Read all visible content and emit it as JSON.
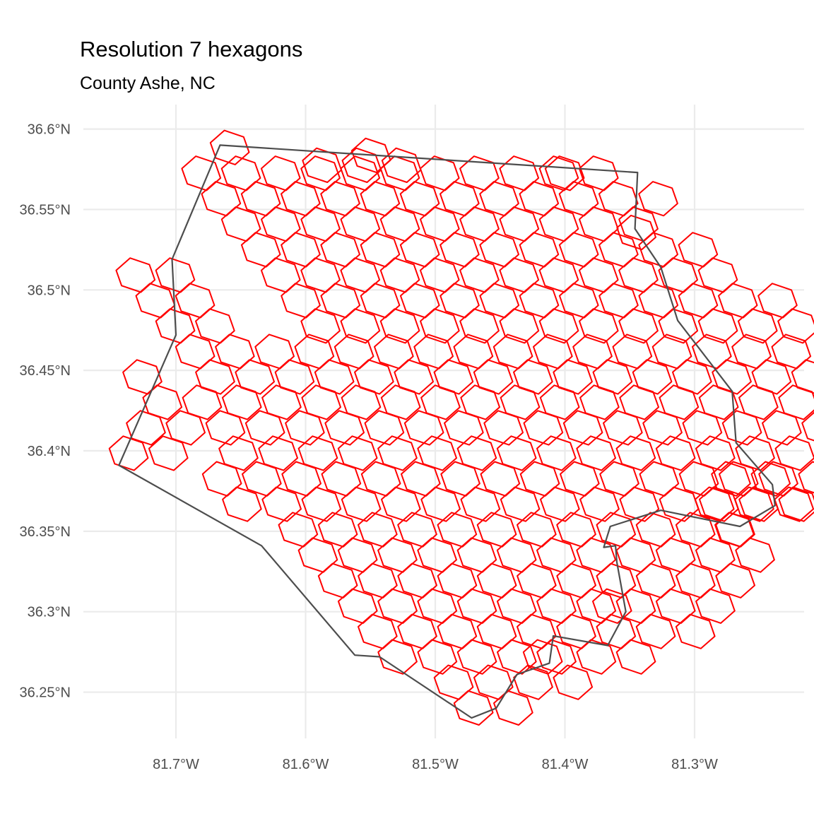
{
  "title": "Resolution 7 hexagons",
  "subtitle": "County Ashe, NC",
  "colors": {
    "background": "#ffffff",
    "grid": "#ebebeb",
    "county_outline": "#4d4d4d",
    "hexagon_outline": "#ff0000",
    "tick_text": "#4d4d4d"
  },
  "axes": {
    "x_ticks": [
      {
        "value": -81.7,
        "label": "81.7°W"
      },
      {
        "value": -81.6,
        "label": "81.6°W"
      },
      {
        "value": -81.5,
        "label": "81.5°W"
      },
      {
        "value": -81.4,
        "label": "81.4°W"
      },
      {
        "value": -81.3,
        "label": "81.3°W"
      }
    ],
    "y_ticks": [
      {
        "value": 36.6,
        "label": "36.6°N"
      },
      {
        "value": 36.55,
        "label": "36.55°N"
      },
      {
        "value": 36.5,
        "label": "36.5°N"
      },
      {
        "value": 36.45,
        "label": "36.45°N"
      },
      {
        "value": 36.4,
        "label": "36.4°N"
      },
      {
        "value": 36.35,
        "label": "36.35°N"
      },
      {
        "value": 36.3,
        "label": "36.3°N"
      },
      {
        "value": 36.25,
        "label": "36.25°N"
      }
    ]
  },
  "county_boundary": [
    [
      -81.666,
      36.59
    ],
    [
      -81.344,
      36.573
    ],
    [
      -81.346,
      36.538
    ],
    [
      -81.326,
      36.514
    ],
    [
      -81.313,
      36.481
    ],
    [
      -81.271,
      36.437
    ],
    [
      -81.268,
      36.405
    ],
    [
      -81.24,
      36.379
    ],
    [
      -81.238,
      36.366
    ],
    [
      -81.265,
      36.353
    ],
    [
      -81.326,
      36.363
    ],
    [
      -81.365,
      36.353
    ],
    [
      -81.37,
      36.34
    ],
    [
      -81.361,
      36.341
    ],
    [
      -81.36,
      36.331
    ],
    [
      -81.353,
      36.3
    ],
    [
      -81.367,
      36.279
    ],
    [
      -81.409,
      36.285
    ],
    [
      -81.412,
      36.268
    ],
    [
      -81.437,
      36.261
    ],
    [
      -81.453,
      36.24
    ],
    [
      -81.472,
      36.234
    ],
    [
      -81.543,
      36.272
    ],
    [
      -81.562,
      36.273
    ],
    [
      -81.634,
      36.341
    ],
    [
      -81.744,
      36.391
    ],
    [
      -81.7,
      36.472
    ],
    [
      -81.703,
      36.519
    ],
    [
      -81.666,
      36.59
    ]
  ],
  "hexagons": {
    "resolution": 7,
    "rows": [
      {
        "lat": 36.5885,
        "lon_start": -81.6585,
        "count": 1
      },
      {
        "lat": 36.5836,
        "lon_start": -81.5495,
        "count": 1
      },
      {
        "lat": 36.5775,
        "lon_start": -81.5874,
        "count": 3
      },
      {
        "lat": 36.5725,
        "lon_start": -81.4002,
        "count": 1
      },
      {
        "lat": 36.5725,
        "lon_start": -81.6805,
        "count": 11
      },
      {
        "lat": 36.5567,
        "lon_start": -81.6652,
        "count": 12
      },
      {
        "lat": 36.5409,
        "lon_start": -81.6498,
        "count": 11
      },
      {
        "lat": 36.5357,
        "lon_start": -81.3449,
        "count": 1
      },
      {
        "lat": 36.525,
        "lon_start": -81.6345,
        "count": 12
      },
      {
        "lat": 36.5092,
        "lon_start": -81.6192,
        "count": 12
      },
      {
        "lat": 36.5092,
        "lon_start": -81.7312,
        "count": 2
      },
      {
        "lat": 36.4934,
        "lon_start": -81.6038,
        "count": 13
      },
      {
        "lat": 36.4934,
        "lon_start": -81.7159,
        "count": 2
      },
      {
        "lat": 36.4776,
        "lon_start": -81.5885,
        "count": 14
      },
      {
        "lat": 36.4776,
        "lon_start": -81.7005,
        "count": 2
      },
      {
        "lat": 36.4617,
        "lon_start": -81.6852,
        "count": 16
      },
      {
        "lat": 36.4459,
        "lon_start": -81.6698,
        "count": 16
      },
      {
        "lat": 36.4459,
        "lon_start": -81.7259,
        "count": 1
      },
      {
        "lat": 36.4301,
        "lon_start": -81.7105,
        "count": 17
      },
      {
        "lat": 36.4143,
        "lon_start": -81.7232,
        "count": 20
      },
      {
        "lat": 36.3985,
        "lon_start": -81.7365,
        "count": 2
      },
      {
        "lat": 36.3985,
        "lon_start": -81.6518,
        "count": 17
      },
      {
        "lat": 36.3826,
        "lon_start": -81.6645,
        "count": 16
      },
      {
        "lat": 36.3826,
        "lon_start": -81.2719,
        "count": 2
      },
      {
        "lat": 36.3668,
        "lon_start": -81.6491,
        "count": 15
      },
      {
        "lat": 36.3668,
        "lon_start": -81.2846,
        "count": 3
      },
      {
        "lat": 36.351,
        "lon_start": -81.6058,
        "count": 12
      },
      {
        "lat": 36.351,
        "lon_start": -81.2693,
        "count": 1
      },
      {
        "lat": 36.3352,
        "lon_start": -81.5905,
        "count": 12
      },
      {
        "lat": 36.3193,
        "lon_start": -81.5751,
        "count": 11
      },
      {
        "lat": 36.3035,
        "lon_start": -81.5598,
        "count": 10
      },
      {
        "lat": 36.3035,
        "lon_start": -81.3636,
        "count": 1
      },
      {
        "lat": 36.2877,
        "lon_start": -81.5445,
        "count": 9
      },
      {
        "lat": 36.2719,
        "lon_start": -81.5291,
        "count": 7
      },
      {
        "lat": 36.2719,
        "lon_start": -81.4171,
        "count": 1
      },
      {
        "lat": 36.2561,
        "lon_start": -81.4858,
        "count": 4
      },
      {
        "lat": 36.2402,
        "lon_start": -81.4705,
        "count": 2
      }
    ]
  }
}
